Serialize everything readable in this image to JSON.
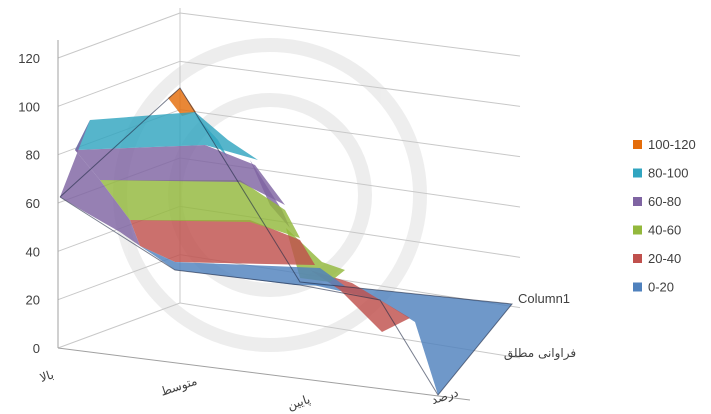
{
  "chart_data": {
    "type": "surface",
    "z_ticks": [
      "0",
      "20",
      "40",
      "60",
      "80",
      "100",
      "120"
    ],
    "zlim": [
      0,
      120
    ],
    "x_categories": [
      "بالا",
      "متوسط",
      "پایین",
      "درصد"
    ],
    "depth_series": [
      "Column1",
      "فراوانی مطلق",
      "درصد"
    ],
    "legend": [
      {
        "label": "100-120",
        "color": "#E46C0A"
      },
      {
        "label": "80-100",
        "color": "#31A5C0"
      },
      {
        "label": "60-80",
        "color": "#7F64A2"
      },
      {
        "label": "40-60",
        "color": "#93B83C"
      },
      {
        "label": "20-40",
        "color": "#C0504D"
      },
      {
        "label": "0-20",
        "color": "#4F81BD"
      }
    ],
    "values": {
      "front_row": [
        62,
        108,
        28,
        0
      ],
      "back_row": [
        62,
        30,
        15,
        5
      ]
    }
  }
}
